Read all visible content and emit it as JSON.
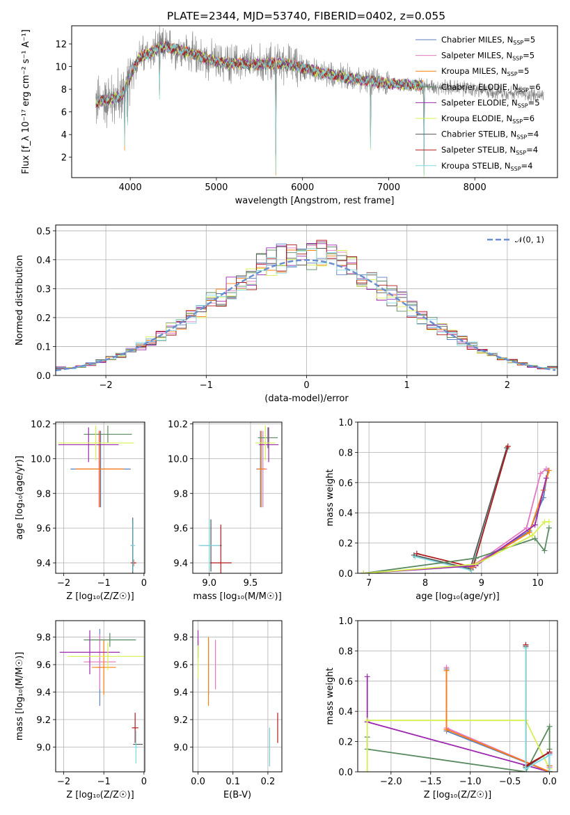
{
  "figure": {
    "title": "PLATE=2344, MJD=53740, FIBERID=0402, z=0.055"
  },
  "colors": {
    "Chabrier MILES": "#5b7fbf",
    "Salpeter MILES": "#e377c2",
    "Kroupa MILES": "#ff7f0e",
    "Chabrier ELODIE": "#5a8a60",
    "Salpeter ELODIE": "#9d28b0",
    "Kroupa ELODIE": "#d6f050",
    "Chabrier STELIB": "#555555",
    "Salpeter STELIB": "#b01818",
    "Kroupa STELIB": "#80d8e0",
    "data": "#808080",
    "gaussian": "#6a8fd0"
  },
  "chart_data": [
    {
      "id": "spectrum",
      "type": "line",
      "title": "PLATE=2344, MJD=53740, FIBERID=0402, z=0.055",
      "xlabel": "wavelength [Angstrom, rest frame]",
      "ylabel": "Flux [f_λ 10⁻¹⁷ erg cm⁻² s⁻¹ A⁻¹]",
      "xlim": [
        3320,
        8960
      ],
      "ylim": [
        0.2,
        13.6
      ],
      "xticks": [
        4000,
        5000,
        6000,
        7000,
        8000
      ],
      "yticks": [
        2,
        4,
        6,
        8,
        10,
        12
      ],
      "grid": false,
      "legend_position": "upper right",
      "legend": [
        {
          "name": "Chabrier MILES",
          "sub": "5"
        },
        {
          "name": "Salpeter MILES",
          "sub": "5"
        },
        {
          "name": "Kroupa MILES",
          "sub": "5"
        },
        {
          "name": "Chabrier ELODIE",
          "sub": "6"
        },
        {
          "name": "Salpeter ELODIE",
          "sub": "5"
        },
        {
          "name": "Kroupa ELODIE",
          "sub": "6"
        },
        {
          "name": "Chabrier STELIB",
          "sub": "4"
        },
        {
          "name": "Salpeter STELIB",
          "sub": "4"
        },
        {
          "name": "Kroupa STELIB",
          "sub": "4"
        }
      ],
      "data_range": [
        3600,
        8800
      ],
      "model_range": [
        3600,
        7420
      ],
      "continuum": [
        [
          3600,
          6.8
        ],
        [
          3900,
          7.4
        ],
        [
          4100,
          10.8
        ],
        [
          4400,
          11.8
        ],
        [
          4700,
          11.2
        ],
        [
          5000,
          10.4
        ],
        [
          5400,
          10.2
        ],
        [
          5800,
          10.3
        ],
        [
          6200,
          9.5
        ],
        [
          6600,
          8.9
        ],
        [
          7000,
          8.5
        ],
        [
          7400,
          8.3
        ],
        [
          7800,
          8.1
        ],
        [
          8200,
          7.8
        ],
        [
          8600,
          7.6
        ],
        [
          8800,
          7.4
        ]
      ],
      "absorption_lines": [
        {
          "x": 3935,
          "depth": 5.0
        },
        {
          "x": 3970,
          "depth": 3.5
        },
        {
          "x": 4340,
          "depth": 4.2
        },
        {
          "x": 5690,
          "depth": 9.5
        },
        {
          "x": 6790,
          "depth": 6.0
        },
        {
          "x": 7410,
          "depth": 8.2
        },
        {
          "x": 7600,
          "depth": 3.0
        }
      ]
    },
    {
      "id": "residuals",
      "type": "line",
      "xlabel": "(data-model)/error",
      "ylabel": "Normed distribution",
      "xlim": [
        -2.5,
        2.5
      ],
      "ylim": [
        0,
        0.52
      ],
      "xticks": [
        -2,
        -1,
        0,
        1,
        2
      ],
      "xticklabels": [
        "−2",
        "−1",
        "0",
        "1",
        "2"
      ],
      "yticks": [
        0.0,
        0.1,
        0.2,
        0.3,
        0.4,
        0.5
      ],
      "grid": true,
      "legend_position": "upper right",
      "legend": [
        {
          "name": "𝒩(0, 1)"
        }
      ],
      "bin_width": 0.1,
      "model_order": [
        "Chabrier MILES",
        "Salpeter MILES",
        "Kroupa MILES",
        "Chabrier ELODIE",
        "Salpeter ELODIE",
        "Kroupa ELODIE",
        "Chabrier STELIB",
        "Salpeter STELIB",
        "Kroupa STELIB"
      ]
    },
    {
      "id": "age-vs-Z",
      "type": "scatter",
      "xlabel": "Z [log₁₀(Z/Z☉)]",
      "ylabel": "age  [log₁₀(age/yr)]",
      "xlim": [
        -2.2,
        0.02
      ],
      "ylim": [
        9.34,
        10.21
      ],
      "xticks": [
        -2,
        -1,
        0
      ],
      "xticklabels": [
        "−2",
        "−1",
        "0"
      ],
      "yticks": [
        9.4,
        9.6,
        9.8,
        10.0,
        10.2
      ],
      "grid": true,
      "points": [
        {
          "model": "Chabrier MILES",
          "x": -1.08,
          "y": 9.94,
          "xerr": 0.75,
          "yerr": 0.22
        },
        {
          "model": "Salpeter MILES",
          "x": -1.12,
          "y": 9.94,
          "xerr": 0.55,
          "yerr": 0.22
        },
        {
          "model": "Kroupa MILES",
          "x": -1.1,
          "y": 9.94,
          "xerr": 0.6,
          "yerr": 0.22
        },
        {
          "model": "Chabrier ELODIE",
          "x": -0.9,
          "y": 10.14,
          "xerr": 0.6,
          "yerr": 0.05
        },
        {
          "model": "Salpeter ELODIE",
          "x": -1.38,
          "y": 10.08,
          "xerr": 0.75,
          "yerr": 0.1
        },
        {
          "model": "Kroupa ELODIE",
          "x": -1.2,
          "y": 10.09,
          "xerr": 0.95,
          "yerr": 0.1
        },
        {
          "model": "Chabrier STELIB",
          "x": -0.28,
          "y": 9.5,
          "xerr": 0.05,
          "yerr": 0.16
        },
        {
          "model": "Salpeter STELIB",
          "x": -0.26,
          "y": 9.4,
          "xerr": 0.07,
          "yerr": 0.02
        },
        {
          "model": "Kroupa STELIB",
          "x": -0.27,
          "y": 9.5,
          "xerr": 0.05,
          "yerr": 0.15
        }
      ]
    },
    {
      "id": "age-vs-mass",
      "type": "scatter",
      "xlabel": "mass [log₁₀(M/M☉)]",
      "ylabel": "",
      "xlim": [
        8.8,
        9.88
      ],
      "ylim": [
        9.34,
        10.21
      ],
      "xticks": [
        9.0,
        9.5
      ],
      "yticks": [
        9.4,
        9.6,
        9.8,
        10.0,
        10.2
      ],
      "grid": true,
      "points": [
        {
          "model": "Chabrier MILES",
          "x": 9.62,
          "y": 9.94,
          "xerr": 0.05,
          "yerr": 0.22
        },
        {
          "model": "Salpeter MILES",
          "x": 9.65,
          "y": 9.94,
          "xerr": 0.05,
          "yerr": 0.22
        },
        {
          "model": "Kroupa MILES",
          "x": 9.63,
          "y": 9.94,
          "xerr": 0.05,
          "yerr": 0.22
        },
        {
          "model": "Chabrier ELODIE",
          "x": 9.71,
          "y": 10.12,
          "xerr": 0.12,
          "yerr": 0.06
        },
        {
          "model": "Salpeter ELODIE",
          "x": 9.72,
          "y": 10.08,
          "xerr": 0.12,
          "yerr": 0.1
        },
        {
          "model": "Kroupa ELODIE",
          "x": 9.68,
          "y": 10.09,
          "xerr": 0.12,
          "yerr": 0.1
        },
        {
          "model": "Chabrier STELIB",
          "x": 9.02,
          "y": 9.5,
          "xerr": 0.13,
          "yerr": 0.15
        },
        {
          "model": "Salpeter STELIB",
          "x": 9.14,
          "y": 9.4,
          "xerr": 0.13,
          "yerr": 0.22
        },
        {
          "model": "Kroupa STELIB",
          "x": 9.0,
          "y": 9.5,
          "xerr": 0.13,
          "yerr": 0.15
        }
      ]
    },
    {
      "id": "weight-vs-age",
      "type": "line",
      "xlabel": "age  [log₁₀(age/yr)]",
      "ylabel": "mass weight",
      "xlim": [
        6.8,
        10.35
      ],
      "ylim": [
        0,
        1.0
      ],
      "xticks": [
        7,
        8,
        9,
        10
      ],
      "yticks": [
        0.0,
        0.2,
        0.4,
        0.6,
        0.8,
        1.0
      ],
      "grid": true,
      "series": [
        {
          "model": "Chabrier STELIB",
          "x": [
            7.8,
            8.8,
            9.45
          ],
          "y": [
            0.12,
            0.03,
            0.83
          ]
        },
        {
          "model": "Kroupa STELIB",
          "x": [
            7.82,
            8.82,
            9.46
          ],
          "y": [
            0.11,
            0.02,
            0.82
          ]
        },
        {
          "model": "Salpeter STELIB",
          "x": [
            7.85,
            8.85,
            9.47
          ],
          "y": [
            0.13,
            0.04,
            0.84
          ]
        },
        {
          "model": "Chabrier MILES",
          "x": [
            8.8,
            9.85,
            10.1,
            10.18
          ],
          "y": [
            0.04,
            0.28,
            0.5,
            0.68
          ]
        },
        {
          "model": "Salpeter MILES",
          "x": [
            8.85,
            9.8,
            10.05,
            10.15
          ],
          "y": [
            0.05,
            0.3,
            0.66,
            0.69
          ]
        },
        {
          "model": "Kroupa MILES",
          "x": [
            8.82,
            9.85,
            10.1,
            10.2
          ],
          "y": [
            0.04,
            0.27,
            0.55,
            0.68
          ]
        },
        {
          "model": "Chabrier ELODIE",
          "x": [
            6.9,
            8.9,
            9.95,
            10.12,
            10.2
          ],
          "y": [
            0.0,
            0.1,
            0.23,
            0.15,
            0.3
          ]
        },
        {
          "model": "Salpeter ELODIE",
          "x": [
            6.9,
            8.9,
            9.95,
            10.15
          ],
          "y": [
            0.0,
            0.05,
            0.32,
            0.63
          ]
        },
        {
          "model": "Kroupa ELODIE",
          "x": [
            6.9,
            8.9,
            9.9,
            10.12,
            10.2
          ],
          "y": [
            0.0,
            0.06,
            0.25,
            0.34,
            0.34
          ]
        }
      ]
    },
    {
      "id": "mass-vs-Z",
      "type": "scatter",
      "xlabel": "Z [log₁₀(Z/Z☉)]",
      "ylabel": "mass [log₁₀(M/M☉)]",
      "xlim": [
        -2.2,
        0.02
      ],
      "ylim": [
        8.82,
        9.92
      ],
      "xticks": [
        -2,
        -1,
        0
      ],
      "xticklabels": [
        "−2",
        "−1",
        "0"
      ],
      "yticks": [
        9.0,
        9.2,
        9.4,
        9.6,
        9.8
      ],
      "grid": true,
      "points": [
        {
          "model": "Chabrier MILES",
          "x": -1.1,
          "y": 9.58,
          "xerr": 0.05,
          "yerr": 0.28
        },
        {
          "model": "Salpeter MILES",
          "x": -1.1,
          "y": 9.62,
          "xerr": 0.4,
          "yerr": 0.2
        },
        {
          "model": "Kroupa MILES",
          "x": -1.0,
          "y": 9.58,
          "xerr": 0.3,
          "yerr": 0.2
        },
        {
          "model": "Chabrier ELODIE",
          "x": -0.85,
          "y": 9.78,
          "xerr": 0.65,
          "yerr": 0.05
        },
        {
          "model": "Salpeter ELODIE",
          "x": -1.35,
          "y": 9.69,
          "xerr": 0.75,
          "yerr": 0.16
        },
        {
          "model": "Kroupa ELODIE",
          "x": -0.9,
          "y": 9.66,
          "xerr": 1.0,
          "yerr": 0.1
        },
        {
          "model": "Chabrier STELIB",
          "x": -0.15,
          "y": 9.02,
          "xerr": 0.12,
          "yerr": 0.0
        },
        {
          "model": "Salpeter STELIB",
          "x": -0.22,
          "y": 9.14,
          "xerr": 0.08,
          "yerr": 0.11
        },
        {
          "model": "Kroupa STELIB",
          "x": -0.2,
          "y": 9.0,
          "xerr": 0.05,
          "yerr": 0.12
        }
      ]
    },
    {
      "id": "mass-vs-EBV",
      "type": "scatter",
      "xlabel": "E(B-V)",
      "ylabel": "",
      "xlim": [
        -0.015,
        0.24
      ],
      "ylim": [
        8.82,
        9.92
      ],
      "xticks": [
        0.0,
        0.1,
        0.2
      ],
      "yticks": [
        9.0,
        9.2,
        9.4,
        9.6,
        9.8
      ],
      "grid": true,
      "points": [
        {
          "model": "Chabrier MILES",
          "x": 0.03,
          "y": 9.58,
          "xerr": 0,
          "yerr": 0.2
        },
        {
          "model": "Salpeter MILES",
          "x": 0.05,
          "y": 9.6,
          "xerr": 0,
          "yerr": 0.18
        },
        {
          "model": "Kroupa MILES",
          "x": 0.03,
          "y": 9.55,
          "xerr": 0,
          "yerr": 0.25
        },
        {
          "model": "Chabrier ELODIE",
          "x": 0.0,
          "y": 9.7,
          "xerr": 0,
          "yerr": 0.08
        },
        {
          "model": "Salpeter ELODIE",
          "x": 0.0,
          "y": 9.75,
          "xerr": 0,
          "yerr": 0.1
        },
        {
          "model": "Kroupa ELODIE",
          "x": 0.0,
          "y": 9.62,
          "xerr": 0,
          "yerr": 0.12
        },
        {
          "model": "Chabrier STELIB",
          "x": 0.205,
          "y": 9.0,
          "xerr": 0,
          "yerr": 0.14
        },
        {
          "model": "Salpeter STELIB",
          "x": 0.228,
          "y": 9.14,
          "xerr": 0,
          "yerr": 0.11
        },
        {
          "model": "Kroupa STELIB",
          "x": 0.205,
          "y": 9.0,
          "xerr": 0,
          "yerr": 0.14
        }
      ]
    },
    {
      "id": "weight-vs-Z",
      "type": "line",
      "xlabel": "Z [log₁₀(Z/Z☉)]",
      "ylabel": "mass weight",
      "xlim": [
        -2.42,
        0.1
      ],
      "ylim": [
        0,
        1.0
      ],
      "xticks": [
        -2.0,
        -1.5,
        -1.0,
        -0.5,
        0.0
      ],
      "xticklabels": [
        "−2.0",
        "−1.5",
        "−1.0",
        "−0.5",
        "0.0"
      ],
      "yticks": [
        0.0,
        0.2,
        0.4,
        0.6,
        0.8,
        1.0
      ],
      "grid": true,
      "series": [
        {
          "model": "Chabrier ELODIE",
          "x": [
            -2.3,
            -2.3,
            -0.3,
            0.0,
            0.0
          ],
          "y": [
            0.23,
            0.15,
            0.0,
            0.3,
            0.15
          ]
        },
        {
          "model": "Salpeter ELODIE",
          "x": [
            -2.3,
            -2.3,
            0.0,
            0.0
          ],
          "y": [
            0.63,
            0.33,
            0.0,
            0.12
          ]
        },
        {
          "model": "Kroupa ELODIE",
          "x": [
            -2.3,
            -2.3,
            -0.3,
            0.0
          ],
          "y": [
            0.0,
            0.34,
            0.34,
            0.02
          ]
        },
        {
          "model": "Chabrier MILES",
          "x": [
            -1.3,
            -1.3,
            0.0,
            0.0
          ],
          "y": [
            0.68,
            0.27,
            0.0,
            0.04
          ]
        },
        {
          "model": "Salpeter MILES",
          "x": [
            -1.3,
            -1.3,
            0.0,
            0.0
          ],
          "y": [
            0.69,
            0.29,
            0.0,
            0.03
          ]
        },
        {
          "model": "Kroupa MILES",
          "x": [
            -1.3,
            -1.3,
            0.0,
            0.0
          ],
          "y": [
            0.67,
            0.28,
            0.0,
            0.04
          ]
        },
        {
          "model": "Chabrier STELIB",
          "x": [
            -0.3,
            -0.3,
            0.0,
            0.0
          ],
          "y": [
            0.83,
            0.03,
            0.13,
            0.0
          ]
        },
        {
          "model": "Salpeter STELIB",
          "x": [
            -0.3,
            -0.3,
            0.0,
            0.0
          ],
          "y": [
            0.84,
            0.04,
            0.13,
            0.0
          ]
        },
        {
          "model": "Kroupa STELIB",
          "x": [
            -0.3,
            -0.3,
            0.0,
            0.0
          ],
          "y": [
            0.82,
            0.02,
            0.11,
            0.0
          ]
        }
      ]
    }
  ]
}
